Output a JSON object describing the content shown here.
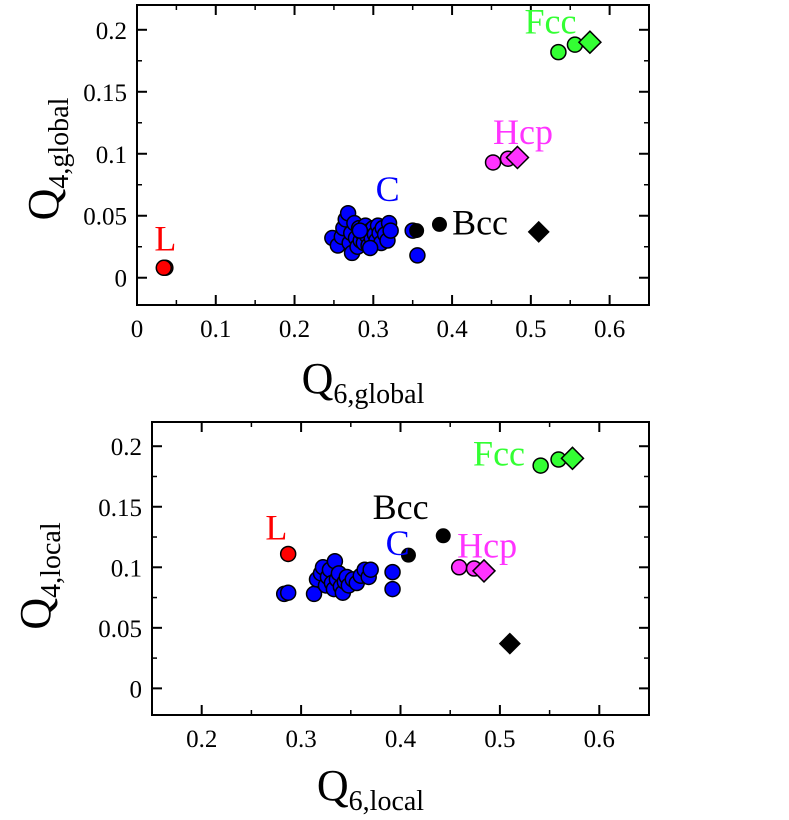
{
  "chart_data": [
    {
      "type": "scatter",
      "xlabel": {
        "main": "Q",
        "sub": "6,global"
      },
      "ylabel": {
        "main": "Q",
        "sub": "4,global"
      },
      "xlim": [
        0,
        0.65
      ],
      "ylim": [
        -0.022,
        0.22
      ],
      "xticks": [
        0,
        0.1,
        0.2,
        0.3,
        0.4,
        0.5,
        0.6
      ],
      "xtick_labels": [
        "0",
        "0.1",
        "0.2",
        "0.3",
        "0.4",
        "0.5",
        "0.6"
      ],
      "yticks": [
        0,
        0.05,
        0.1,
        0.15,
        0.2
      ],
      "ytick_labels": [
        "0",
        "0.05",
        "0.1",
        "0.15",
        "0.2"
      ],
      "series": [
        {
          "color": "#ff0000",
          "marker": "circle",
          "outline": true,
          "points": [
            [
              0.036,
              0.008
            ],
            [
              0.034,
              0.008
            ]
          ]
        },
        {
          "color": "#0000ff",
          "marker": "circle",
          "outline": true,
          "points": [
            [
              0.248,
              0.032
            ],
            [
              0.255,
              0.026
            ],
            [
              0.26,
              0.033
            ],
            [
              0.262,
              0.04
            ],
            [
              0.265,
              0.047
            ],
            [
              0.268,
              0.052
            ],
            [
              0.27,
              0.028
            ],
            [
              0.272,
              0.036
            ],
            [
              0.273,
              0.02
            ],
            [
              0.276,
              0.044
            ],
            [
              0.278,
              0.032
            ],
            [
              0.28,
              0.025
            ],
            [
              0.282,
              0.04
            ],
            [
              0.284,
              0.03
            ],
            [
              0.286,
              0.036
            ],
            [
              0.288,
              0.028
            ],
            [
              0.29,
              0.042
            ],
            [
              0.292,
              0.034
            ],
            [
              0.294,
              0.026
            ],
            [
              0.296,
              0.038
            ],
            [
              0.298,
              0.032
            ],
            [
              0.3,
              0.04
            ],
            [
              0.302,
              0.035
            ],
            [
              0.304,
              0.03
            ],
            [
              0.306,
              0.042
            ],
            [
              0.308,
              0.036
            ],
            [
              0.31,
              0.028
            ],
            [
              0.312,
              0.04
            ],
            [
              0.315,
              0.035
            ],
            [
              0.318,
              0.03
            ],
            [
              0.32,
              0.044
            ],
            [
              0.322,
              0.038
            ],
            [
              0.296,
              0.024
            ],
            [
              0.283,
              0.038
            ],
            [
              0.35,
              0.038
            ],
            [
              0.356,
              0.018
            ]
          ]
        },
        {
          "color": "#000000",
          "marker": "circle",
          "outline": false,
          "points": [
            [
              0.355,
              0.038
            ],
            [
              0.384,
              0.043
            ]
          ]
        },
        {
          "color": "#000000",
          "marker": "diamond",
          "outline": false,
          "points": [
            [
              0.51,
              0.037
            ]
          ]
        },
        {
          "color": "#ff33ff",
          "marker": "circle",
          "outline": true,
          "points": [
            [
              0.452,
              0.093
            ],
            [
              0.471,
              0.096
            ]
          ]
        },
        {
          "color": "#ff33ff",
          "marker": "diamond",
          "outline": true,
          "points": [
            [
              0.483,
              0.097
            ]
          ]
        },
        {
          "color": "#33ff33",
          "marker": "circle",
          "outline": true,
          "points": [
            [
              0.535,
              0.182
            ],
            [
              0.556,
              0.188
            ]
          ]
        },
        {
          "color": "#33ff33",
          "marker": "diamond",
          "outline": true,
          "points": [
            [
              0.575,
              0.19
            ]
          ]
        }
      ],
      "annotations": [
        {
          "text": "L",
          "x": 0.022,
          "y": 0.022,
          "color": "#ff0000"
        },
        {
          "text": "C",
          "x": 0.303,
          "y": 0.062,
          "color": "#0000ff"
        },
        {
          "text": "Bcc",
          "x": 0.4,
          "y": 0.035,
          "color": "#000000"
        },
        {
          "text": "Hcp",
          "x": 0.452,
          "y": 0.108,
          "color": "#ff33ff"
        },
        {
          "text": "Fcc",
          "x": 0.492,
          "y": 0.197,
          "color": "#33ff33"
        }
      ]
    },
    {
      "type": "scatter",
      "xlabel": {
        "main": "Q",
        "sub": "6,local"
      },
      "ylabel": {
        "main": "Q",
        "sub": "4,local"
      },
      "xlim": [
        0.15,
        0.65
      ],
      "ylim": [
        -0.022,
        0.22
      ],
      "xticks": [
        0.2,
        0.3,
        0.4,
        0.5,
        0.6
      ],
      "xtick_labels": [
        "0.2",
        "0.3",
        "0.4",
        "0.5",
        "0.6"
      ],
      "yticks": [
        0,
        0.05,
        0.1,
        0.15,
        0.2
      ],
      "yticks_labels_note": "",
      "ytick_labels": [
        "0",
        "0.05",
        "0.1",
        "0.15",
        "0.2"
      ],
      "series": [
        {
          "color": "#ff0000",
          "marker": "circle",
          "outline": true,
          "points": [
            [
              0.287,
              0.111
            ]
          ]
        },
        {
          "color": "#0000ff",
          "marker": "circle",
          "outline": true,
          "points": [
            [
              0.283,
              0.078
            ],
            [
              0.287,
              0.079
            ],
            [
              0.313,
              0.078
            ],
            [
              0.316,
              0.09
            ],
            [
              0.32,
              0.095
            ],
            [
              0.322,
              0.1
            ],
            [
              0.325,
              0.085
            ],
            [
              0.327,
              0.092
            ],
            [
              0.329,
              0.098
            ],
            [
              0.331,
              0.087
            ],
            [
              0.333,
              0.082
            ],
            [
              0.334,
              0.105
            ],
            [
              0.336,
              0.09
            ],
            [
              0.338,
              0.095
            ],
            [
              0.34,
              0.084
            ],
            [
              0.342,
              0.079
            ],
            [
              0.344,
              0.088
            ],
            [
              0.346,
              0.092
            ],
            [
              0.348,
              0.085
            ],
            [
              0.352,
              0.09
            ],
            [
              0.356,
              0.087
            ],
            [
              0.36,
              0.093
            ],
            [
              0.364,
              0.098
            ],
            [
              0.368,
              0.092
            ],
            [
              0.37,
              0.098
            ],
            [
              0.392,
              0.096
            ],
            [
              0.392,
              0.082
            ]
          ]
        },
        {
          "color": "#000000",
          "marker": "circle",
          "outline": false,
          "points": [
            [
              0.408,
              0.11
            ],
            [
              0.443,
              0.126
            ]
          ]
        },
        {
          "color": "#000000",
          "marker": "diamond",
          "outline": false,
          "points": [
            [
              0.51,
              0.037
            ]
          ]
        },
        {
          "color": "#ff33ff",
          "marker": "circle",
          "outline": true,
          "points": [
            [
              0.459,
              0.1
            ],
            [
              0.474,
              0.099
            ]
          ]
        },
        {
          "color": "#ff33ff",
          "marker": "diamond",
          "outline": true,
          "points": [
            [
              0.484,
              0.097
            ]
          ]
        },
        {
          "color": "#33ff33",
          "marker": "circle",
          "outline": true,
          "points": [
            [
              0.541,
              0.184
            ],
            [
              0.559,
              0.189
            ]
          ]
        },
        {
          "color": "#33ff33",
          "marker": "diamond",
          "outline": true,
          "points": [
            [
              0.573,
              0.19
            ]
          ]
        }
      ],
      "annotations": [
        {
          "text": "L",
          "x": 0.264,
          "y": 0.123,
          "color": "#ff0000"
        },
        {
          "text": "C",
          "x": 0.385,
          "y": 0.11,
          "color": "#0000ff"
        },
        {
          "text": "Bcc",
          "x": 0.372,
          "y": 0.14,
          "color": "#000000"
        },
        {
          "text": "Hcp",
          "x": 0.457,
          "y": 0.108,
          "color": "#ff33ff"
        },
        {
          "text": "Fcc",
          "x": 0.473,
          "y": 0.184,
          "color": "#33ff33"
        }
      ]
    }
  ]
}
